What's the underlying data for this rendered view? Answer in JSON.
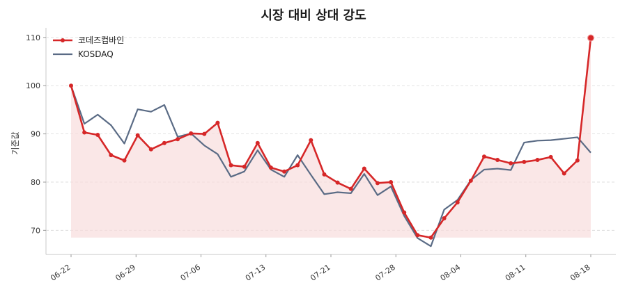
{
  "chart_data": {
    "type": "line",
    "title": "시장 대비 상대 강도",
    "xlabel": "",
    "ylabel": "기준값",
    "ylim": [
      65,
      112
    ],
    "yticks": [
      70,
      80,
      90,
      100,
      110
    ],
    "xticks": [
      "06-22",
      "06-29",
      "07-06",
      "07-13",
      "07-21",
      "07-28",
      "08-04",
      "08-11",
      "08-18"
    ],
    "legend_position": "top-left",
    "grid": true,
    "series": [
      {
        "name": "코데즈컴바인",
        "color": "#d62728",
        "values": [
          100,
          90.3,
          89.8,
          85.6,
          84.5,
          89.7,
          86.8,
          88.1,
          88.9,
          90.1,
          90.0,
          92.3,
          83.5,
          83.2,
          88.1,
          83.0,
          82.2,
          83.5,
          88.7,
          81.6,
          79.9,
          78.6,
          82.8,
          79.8,
          80.0,
          73.7,
          69.0,
          68.5,
          72.5,
          75.8,
          80.3,
          85.3,
          84.6,
          83.9,
          84.2,
          84.6,
          85.2,
          81.8,
          84.5,
          109.9
        ]
      },
      {
        "name": "KOSDAQ",
        "color": "#5a6b85",
        "values": [
          100,
          92.1,
          94.0,
          91.8,
          88.0,
          95.1,
          94.6,
          96.0,
          89.4,
          90.1,
          87.6,
          85.8,
          81.1,
          82.2,
          86.6,
          82.6,
          81.1,
          85.6,
          81.5,
          77.5,
          77.9,
          77.7,
          81.7,
          77.3,
          79.1,
          73.0,
          68.4,
          66.7,
          74.3,
          76.3,
          80.4,
          82.6,
          82.8,
          82.5,
          88.2,
          88.6,
          88.7,
          89.0,
          89.3,
          86.1
        ]
      }
    ],
    "fill_color": "#f8dddd"
  }
}
